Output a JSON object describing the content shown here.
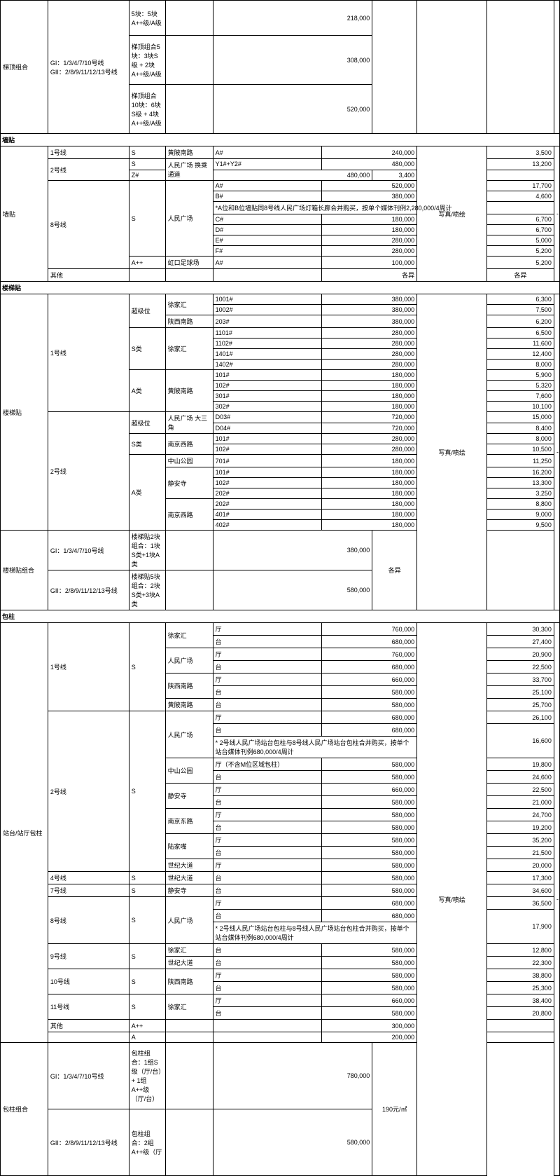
{
  "col_widths_pct": [
    8.5,
    14.5,
    6.5,
    8.5,
    19.5,
    9,
    8,
    12.5,
    12,
    1
  ],
  "top": {
    "cat": "梯顶组合",
    "g1": "GI：1/3/4/7/10号线",
    "g2": "GII：2/8/9/11/12/13号线",
    "r0_desc": "5块：5块A++级/A级",
    "r0_val": "218,000",
    "r1_desc": "梯顶组合5块：3块S级 + 2块A++级/A级",
    "r1_val": "308,000",
    "r2_desc": "梯顶组合10块：6块S级 + 4块A++级/A级",
    "r2_val": "520,000"
  },
  "qiangtie": {
    "hdr": "墙贴",
    "cat": "墙贴",
    "method": "写真/喷绘",
    "rows": [
      {
        "line": "1号线",
        "grade": "S",
        "station": "黄陂南路",
        "code": "A#",
        "v1": "240,000",
        "v3": "3,500"
      },
      {
        "line": "2号线",
        "line_rs": 2,
        "grade": "S",
        "station": "人民广场 换乘通道",
        "station_rs": 2,
        "code": "Y1#+Y2#",
        "v1": "480,000",
        "v3": "13,200"
      },
      {
        "code": "Z#",
        "v1": "480,000",
        "v3": "3,400"
      },
      {
        "line": "8号线",
        "line_rs": 8,
        "grade": "S",
        "grade_rs": 7,
        "station": "人民广场",
        "station_rs": 7,
        "code": "A#",
        "v1": "520,000",
        "v3": "17,700"
      },
      {
        "code": "B#",
        "v1": "380,000",
        "v3": "4,600"
      },
      {
        "note": "*A位和B位墙贴同8号线人民广场灯箱长廊合并购买，按单个媒体刊例2,280,000/4周计",
        "note_cs": 4
      },
      {
        "code": "C#",
        "v1": "180,000",
        "v3": "6,700"
      },
      {
        "code": "D#",
        "v1": "180,000",
        "v3": "6,700"
      },
      {
        "code": "E#",
        "v1": "280,000",
        "v3": "5,000"
      },
      {
        "code": "F#",
        "v1": "280,000",
        "v3": "5,200"
      },
      {
        "grade": "A++",
        "station": "虹口足球场",
        "code": "A#",
        "v1": "100,000",
        "v3": "5,200"
      },
      {
        "line": "其他",
        "grade": "",
        "station": "",
        "code": "",
        "v1": "各异",
        "v3": "各异",
        "geyi": true
      }
    ]
  },
  "loutitie": {
    "hdr": "楼梯贴",
    "cat": "楼梯贴",
    "cat2": "楼梯贴组合",
    "method": "写真/喷绘",
    "rows": [
      {
        "line": "1号线",
        "line_rs": 11,
        "grade": "超级位",
        "grade_rs": 3,
        "station": "徐家汇",
        "station_rs": 2,
        "code": "1001#",
        "v1": "380,000",
        "v3": "6,300"
      },
      {
        "code": "1002#",
        "v1": "380,000",
        "v3": "7,500"
      },
      {
        "station": "陕西南路",
        "code": "203#",
        "v1": "380,000",
        "v3": "6,200"
      },
      {
        "grade": "S类",
        "grade_rs": 4,
        "station": "徐家汇",
        "station_rs": 4,
        "code": "1101#",
        "v1": "280,000",
        "v3": "6,500"
      },
      {
        "code": "1102#",
        "v1": "280,000",
        "v3": "11,600"
      },
      {
        "code": "1401#",
        "v1": "280,000",
        "v3": "12,400"
      },
      {
        "code": "1402#",
        "v1": "280,000",
        "v3": "8,000"
      },
      {
        "grade": "A类",
        "grade_rs": 4,
        "station": "黄陂南路",
        "station_rs": 4,
        "code": "101#",
        "v1": "180,000",
        "v3": "5,900"
      },
      {
        "code": "102#",
        "v1": "180,000",
        "v3": "5,320"
      },
      {
        "code": "301#",
        "v1": "180,000",
        "v3": "7,600"
      },
      {
        "code": "302#",
        "v1": "180,000",
        "v3": "10,100"
      },
      {
        "line": "2号线",
        "line_rs": 11,
        "grade": "超级位",
        "grade_rs": 2,
        "station": "人民广场 大三角",
        "station_rs": 2,
        "code": "D03#",
        "v1": "720,000",
        "v3": "15,000"
      },
      {
        "code": "D04#",
        "v1": "720,000",
        "v3": "8,400"
      },
      {
        "grade": "S类",
        "grade_rs": 2,
        "station": "南京西路",
        "station_rs": 2,
        "code": "101#",
        "v1": "280,000",
        "v3": "8,000"
      },
      {
        "code": "102#",
        "v1": "280,000",
        "v3": "10,500"
      },
      {
        "grade": "A类",
        "grade_rs": 7,
        "station": "中山公园",
        "code": "701#",
        "v1": "180,000",
        "v3": "11,250"
      },
      {
        "station": "静安寺",
        "station_rs": 3,
        "code": "101#",
        "v1": "180,000",
        "v3": "16,200"
      },
      {
        "code": "102#",
        "v1": "180,000",
        "v3": "13,300"
      },
      {
        "code": "202#",
        "v1": "180,000",
        "v3": "3,250"
      },
      {
        "station": "南京西路",
        "station_rs": 3,
        "code": "202#",
        "v1": "180,000",
        "v3": "8,800"
      },
      {
        "code": "401#",
        "v1": "180,000",
        "v3": "9,000"
      },
      {
        "code": "402#",
        "v1": "180,000",
        "v3": "9,500"
      }
    ],
    "combo": [
      {
        "g": "GI：1/3/4/7/10号线",
        "desc": "楼梯贴2块组合：1块S类+1块A类",
        "v1": "380,000"
      },
      {
        "g": "GII：2/8/9/11/12/13号线",
        "desc": "楼梯贴5块组合：2块S类+3块A类",
        "v1": "580,000"
      }
    ],
    "combo_v3": "各异"
  },
  "baozhu": {
    "hdr": "包柱",
    "cat": "站台/站厅包柱",
    "cat2": "包柱组合",
    "method": "写真/喷绘",
    "rows": [
      {
        "line": "1号线",
        "line_rs": 7,
        "grade": "S",
        "grade_rs": 7,
        "station": "徐家汇",
        "station_rs": 2,
        "code": "厅",
        "v1": "760,000",
        "v3": "30,300"
      },
      {
        "code": "台",
        "v1": "680,000",
        "v3": "27,400"
      },
      {
        "station": "人民广场",
        "station_rs": 2,
        "code": "厅",
        "v1": "760,000",
        "v3": "20,900"
      },
      {
        "code": "台",
        "v1": "680,000",
        "v3": "22,500"
      },
      {
        "station": "陕西南路",
        "station_rs": 2,
        "code": "厅",
        "v1": "660,000",
        "v3": "33,700"
      },
      {
        "code": "台",
        "v1": "580,000",
        "v3": "25,100"
      },
      {
        "station": "黄陂南路",
        "code": "台",
        "v1": "580,000",
        "v3": "25,700"
      },
      {
        "line": "2号线",
        "line_rs": 12,
        "grade": "S",
        "grade_rs": 12,
        "station": "人民广场",
        "station_rs": 3,
        "code": "厅",
        "v1": "680,000",
        "v3": "26,100"
      },
      {
        "code": "台",
        "v1": "680,000",
        "v3_rs": 2,
        "v3": "16,600"
      },
      {
        "note": "* 2号线人民广场站台包柱与8号线人民广场站台包柱合并购买，按单个站台媒体刊例680,000/4周计",
        "note_cs": 3
      },
      {
        "station": "中山公园",
        "station_rs": 2,
        "code": "厅（不含M位区域包柱）",
        "v1": "580,000",
        "v3": "19,800"
      },
      {
        "code": "台",
        "v1": "580,000",
        "v3": "24,600"
      },
      {
        "station": "静安寺",
        "station_rs": 2,
        "code": "厅",
        "v1": "660,000",
        "v3": "22,500"
      },
      {
        "code": "台",
        "v1": "580,000",
        "v3": "21,000"
      },
      {
        "station": "南京东路",
        "station_rs": 2,
        "code": "厅",
        "v1": "580,000",
        "v3": "24,700"
      },
      {
        "code": "台",
        "v1": "580,000",
        "v3": "19,200"
      },
      {
        "station": "陆家嘴",
        "station_rs": 2,
        "code": "厅",
        "v1": "580,000",
        "v3": "35,200"
      },
      {
        "code": "台",
        "v1": "580,000",
        "v3": "21,500"
      },
      {
        "station": "世纪大道",
        "code": "厅",
        "v1": "580,000",
        "v3": "20,000"
      },
      {
        "line": "4号线",
        "grade": "S",
        "station": "世纪大道",
        "code": "台",
        "v1": "580,000",
        "v3": "17,300"
      },
      {
        "line": "7号线",
        "grade": "S",
        "station": "静安寺",
        "code": "台",
        "v1": "580,000",
        "v3": "34,600"
      },
      {
        "line": "8号线",
        "line_rs": 3,
        "grade": "S",
        "grade_rs": 3,
        "station": "人民广场",
        "station_rs": 3,
        "code": "厅",
        "v1": "680,000",
        "v3": "36,500"
      },
      {
        "code": "台",
        "v1": "680,000",
        "v3_rs": 2,
        "v3": "17,900"
      },
      {
        "note": "* 2号线人民广场站台包柱与8号线人民广场站台包柱合并购买，按单个站台媒体刊例680,000/4周计",
        "note_cs": 3
      },
      {
        "line": "9号线",
        "line_rs": 2,
        "grade": "S",
        "grade_rs": 2,
        "station": "徐家汇",
        "code": "台",
        "v1": "580,000",
        "v3": "12,800"
      },
      {
        "station": "世纪大道",
        "code": "台",
        "v1": "580,000",
        "v3": "22,300"
      },
      {
        "line": "10号线",
        "line_rs": 2,
        "grade": "S",
        "grade_rs": 2,
        "station": "陕西南路",
        "station_rs": 2,
        "code": "厅",
        "v1": "580,000",
        "v3": "38,800"
      },
      {
        "code": "台",
        "v1": "580,000",
        "v3": "25,300"
      },
      {
        "line": "11号线",
        "line_rs": 2,
        "grade": "S",
        "grade_rs": 2,
        "station": "徐家汇",
        "station_rs": 2,
        "code": "厅",
        "v1": "660,000",
        "v3": "38,400"
      },
      {
        "code": "台",
        "v1": "580,000",
        "v3": "20,800"
      },
      {
        "line": "其他",
        "grade": "A++",
        "station": "",
        "code": "",
        "v1": "300,000",
        "v3": ""
      },
      {
        "line": "",
        "grade": "A",
        "station": "",
        "code": "",
        "v1": "200,000",
        "v3": ""
      }
    ],
    "combo": [
      {
        "g": "GI：1/3/4/7/10号线",
        "desc": "包柱组合：1组S级（厅/台）+ 1组A++级（厅/台）",
        "v1": "780,000"
      },
      {
        "g": "GII：2/8/9/11/12/13号线",
        "desc": "包柱组合：2组A++级（厅",
        "v1": "580,000"
      }
    ],
    "combo_v3": "190元/㎡"
  }
}
